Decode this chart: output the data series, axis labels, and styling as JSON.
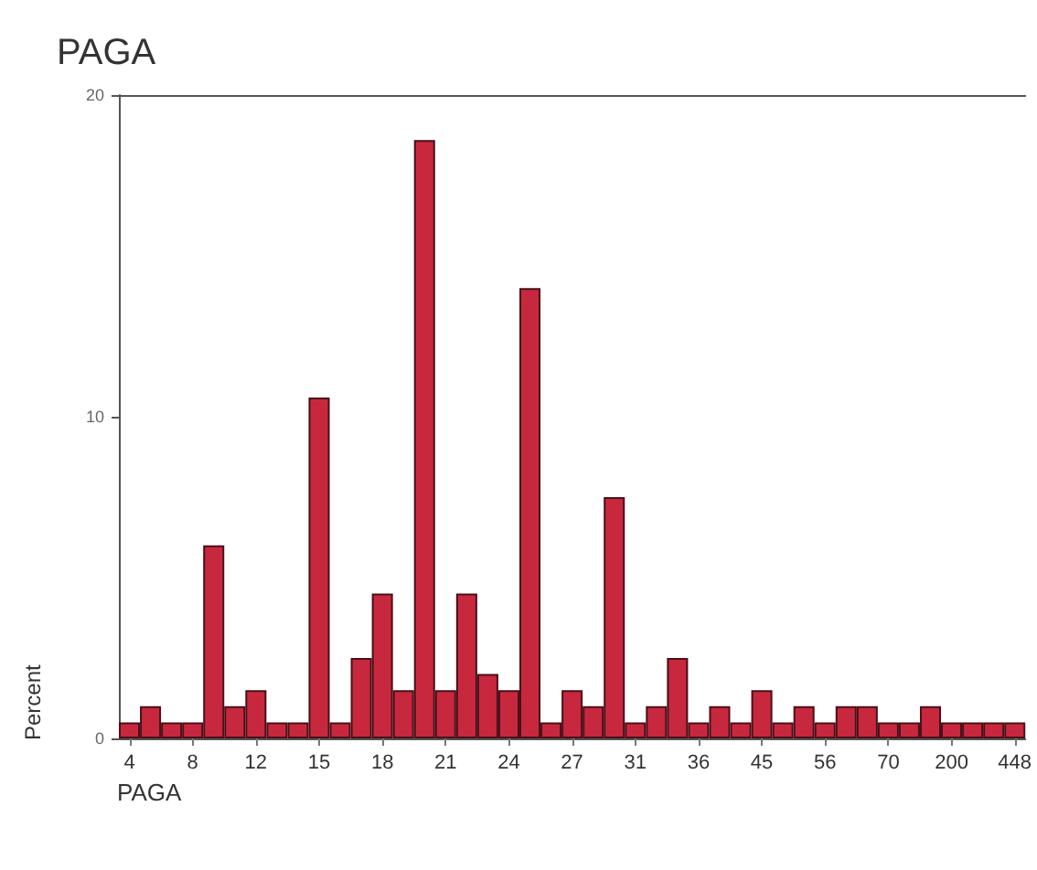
{
  "chart_data": {
    "type": "bar",
    "title": "PAGA",
    "xlabel": "PAGA",
    "ylabel": "Percent",
    "categories": [
      "4",
      null,
      null,
      "8",
      null,
      null,
      "12",
      null,
      null,
      "15",
      null,
      null,
      "18",
      null,
      null,
      "21",
      null,
      null,
      "24",
      null,
      null,
      "27",
      null,
      null,
      "31",
      null,
      null,
      "36",
      null,
      null,
      "45",
      null,
      null,
      "56",
      null,
      null,
      "70",
      null,
      null,
      "200",
      null,
      null,
      "448"
    ],
    "values": [
      0.5,
      1.0,
      0.5,
      0.5,
      6.0,
      1.0,
      1.5,
      0.5,
      0.5,
      10.6,
      0.5,
      2.5,
      4.5,
      1.5,
      18.6,
      1.5,
      4.5,
      2.0,
      1.5,
      14.0,
      0.5,
      1.5,
      1.0,
      7.5,
      0.5,
      1.0,
      2.5,
      0.5,
      1.0,
      0.5,
      1.5,
      0.5,
      1.0,
      0.5,
      1.0,
      1.0,
      0.5,
      0.5,
      1.0,
      0.5,
      0.5,
      0.5,
      0.5
    ],
    "color": "#c8283e",
    "ylim": [
      0,
      20
    ],
    "yticks": [
      0,
      10,
      20
    ],
    "grid": false
  }
}
